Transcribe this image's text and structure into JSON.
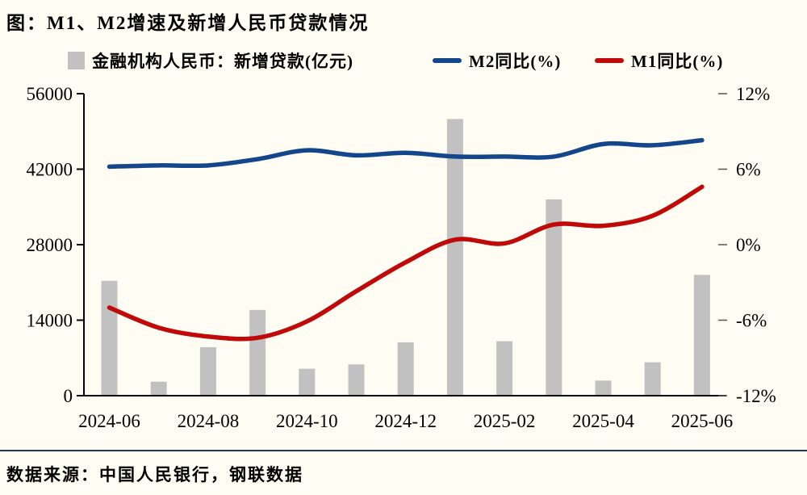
{
  "title": "图：M1、M2增速及新增人民币贷款情况",
  "source": "数据来源：中国人民银行，钢联数据",
  "legend": {
    "items": [
      {
        "label": "金融机构人民币：新增贷款(亿元)",
        "swatch": "bar",
        "color": "#C1C1C1"
      },
      {
        "label": "M2同比(%)",
        "swatch": "line",
        "color": "#13468A"
      },
      {
        "label": "M1同比(%)",
        "swatch": "line",
        "color": "#C00A0A"
      }
    ]
  },
  "colors": {
    "background": "#FFFDF3",
    "bar": "#C1C1C1",
    "m2_line": "#13468A",
    "m1_line": "#C00A0A",
    "axis": "#000000",
    "right_tick": "#555555",
    "separator": "#1F3864"
  },
  "chart_data": {
    "type": "bar+line",
    "title": "图：M1、M2增速及新增人民币贷款情况",
    "categories": [
      "2024-06",
      "2024-07",
      "2024-08",
      "2024-09",
      "2024-10",
      "2024-11",
      "2024-12",
      "2025-01",
      "2025-02",
      "2025-03",
      "2025-04",
      "2025-05",
      "2025-06"
    ],
    "x_tick_labels": [
      "2024-06",
      "2024-08",
      "2024-10",
      "2024-12",
      "2025-02",
      "2025-04",
      "2025-06"
    ],
    "series": [
      {
        "name": "金融机构人民币：新增贷款(亿元)",
        "type": "bar",
        "axis": "left",
        "color": "#C1C1C1",
        "values": [
          21300,
          2600,
          9000,
          15900,
          5000,
          5800,
          9900,
          51300,
          10100,
          36400,
          2800,
          6200,
          22400
        ]
      },
      {
        "name": "M2同比(%)",
        "type": "line",
        "axis": "right",
        "color": "#13468A",
        "values": [
          6.2,
          6.3,
          6.3,
          6.8,
          7.5,
          7.1,
          7.3,
          7.0,
          7.0,
          7.0,
          8.0,
          7.9,
          8.3
        ]
      },
      {
        "name": "M1同比(%)",
        "type": "line",
        "axis": "right",
        "color": "#C00A0A",
        "values": [
          -5.0,
          -6.6,
          -7.3,
          -7.4,
          -6.1,
          -3.7,
          -1.4,
          0.4,
          0.1,
          1.6,
          1.5,
          2.3,
          4.6
        ]
      }
    ],
    "left_axis": {
      "min": 0,
      "max": 56000,
      "ticks": [
        0,
        14000,
        28000,
        42000,
        56000
      ],
      "tick_labels": [
        "0",
        "14000",
        "28000",
        "42000",
        "56000"
      ]
    },
    "right_axis": {
      "min": -12,
      "max": 12,
      "ticks": [
        -12,
        -6,
        0,
        6,
        12
      ],
      "tick_labels": [
        "-12%",
        "-6%",
        "0%",
        "6%",
        "12%"
      ]
    },
    "grid": false,
    "legend_position": "top"
  }
}
